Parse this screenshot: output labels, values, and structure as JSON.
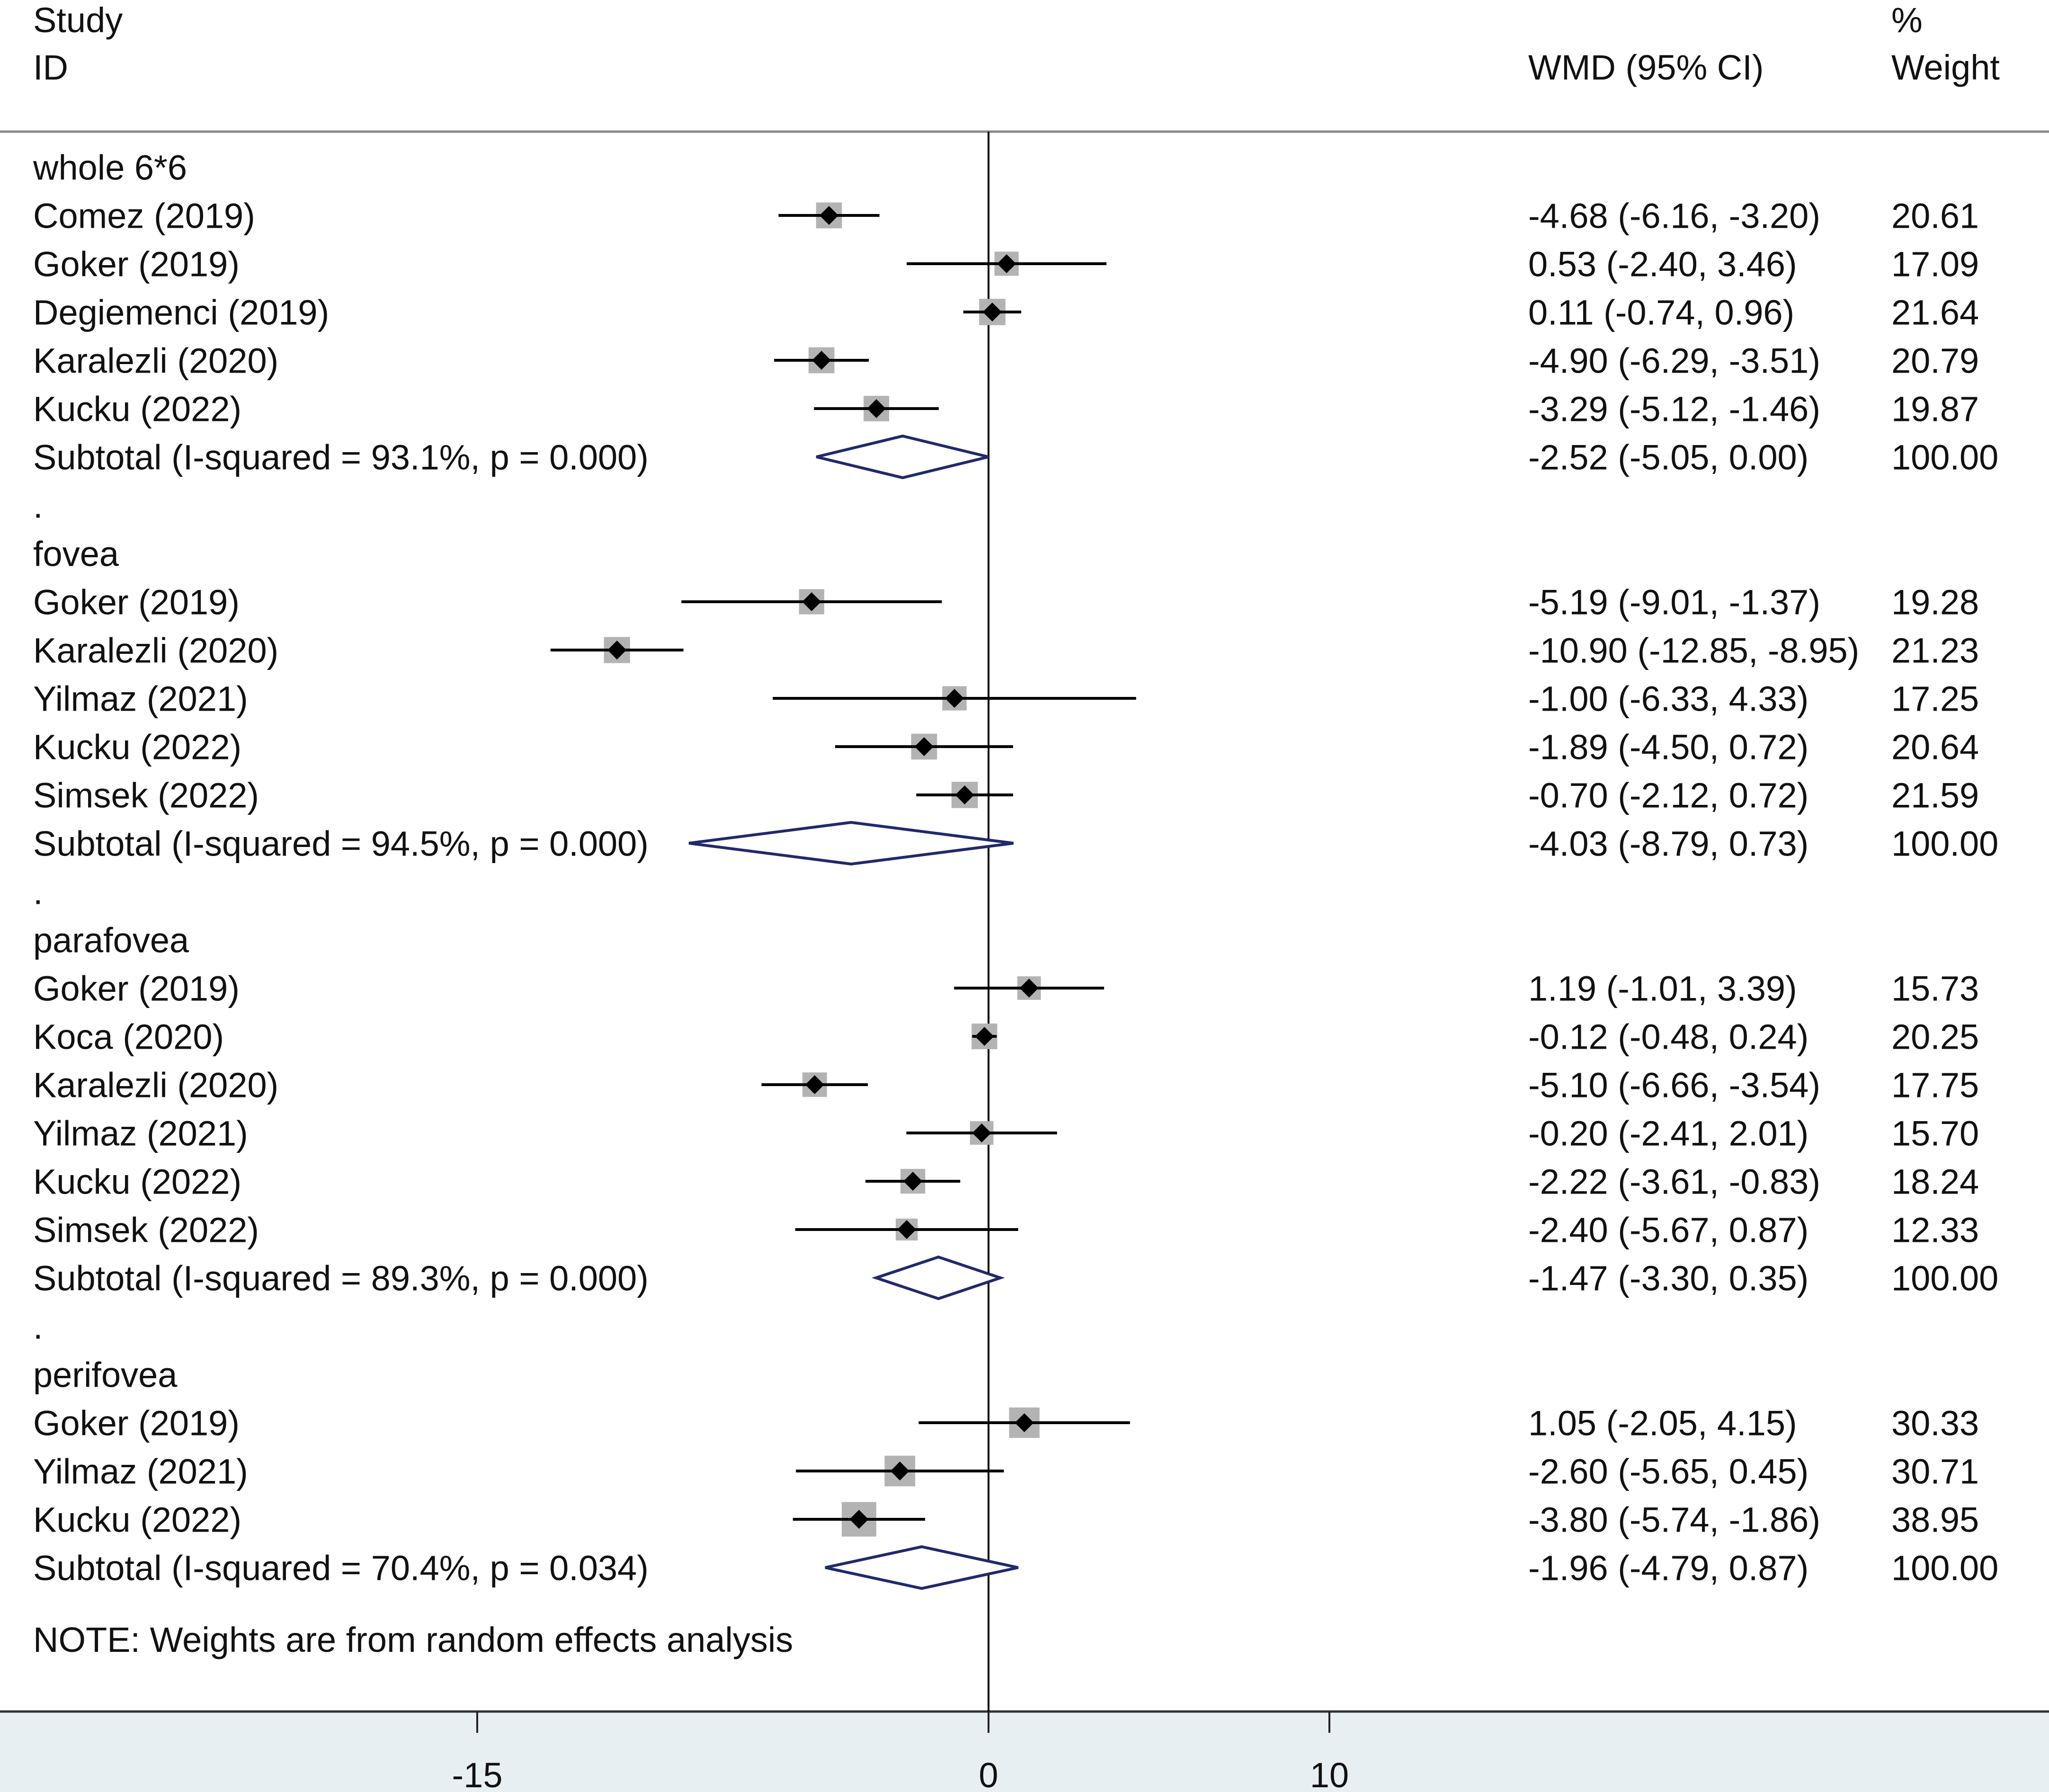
{
  "chart_data": {
    "type": "forest",
    "header": {
      "col_study_line1": "Study",
      "col_study_line2": "ID",
      "col_effect": "WMD (95% CI)",
      "col_weight_line1": "%",
      "col_weight_line2": "Weight"
    },
    "x_ticks": [
      {
        "value": -15,
        "label": "-15"
      },
      {
        "value": 0,
        "label": "0"
      },
      {
        "value": 10,
        "label": "10"
      }
    ],
    "rows": [
      {
        "kind": "group",
        "label": "whole 6*6"
      },
      {
        "kind": "study",
        "label": "Comez (2019)",
        "est": -4.68,
        "lo": -6.16,
        "hi": -3.2,
        "effect_text": "-4.68 (-6.16, -3.20)",
        "weight": "20.61"
      },
      {
        "kind": "study",
        "label": "Goker (2019)",
        "est": 0.53,
        "lo": -2.4,
        "hi": 3.46,
        "effect_text": "0.53 (-2.40, 3.46)",
        "weight": "17.09"
      },
      {
        "kind": "study",
        "label": "Degiemenci (2019)",
        "est": 0.11,
        "lo": -0.74,
        "hi": 0.96,
        "effect_text": "0.11 (-0.74, 0.96)",
        "weight": "21.64"
      },
      {
        "kind": "study",
        "label": "Karalezli (2020)",
        "est": -4.9,
        "lo": -6.29,
        "hi": -3.51,
        "effect_text": "-4.90 (-6.29, -3.51)",
        "weight": "20.79"
      },
      {
        "kind": "study",
        "label": "Kucku (2022)",
        "est": -3.29,
        "lo": -5.12,
        "hi": -1.46,
        "effect_text": "-3.29 (-5.12, -1.46)",
        "weight": "19.87"
      },
      {
        "kind": "subtotal",
        "label": "Subtotal  (I-squared = 93.1%, p = 0.000)",
        "est": -2.52,
        "lo": -5.05,
        "hi": 0.0,
        "effect_text": "-2.52 (-5.05, 0.00)",
        "weight": "100.00"
      },
      {
        "kind": "sep",
        "label": "."
      },
      {
        "kind": "group",
        "label": "fovea"
      },
      {
        "kind": "study",
        "label": "Goker (2019)",
        "est": -5.19,
        "lo": -9.01,
        "hi": -1.37,
        "effect_text": "-5.19 (-9.01, -1.37)",
        "weight": "19.28"
      },
      {
        "kind": "study",
        "label": "Karalezli (2020)",
        "est": -10.9,
        "lo": -12.85,
        "hi": -8.95,
        "effect_text": "-10.90 (-12.85, -8.95)",
        "weight": "21.23"
      },
      {
        "kind": "study",
        "label": "Yilmaz (2021)",
        "est": -1.0,
        "lo": -6.33,
        "hi": 4.33,
        "effect_text": "-1.00 (-6.33, 4.33)",
        "weight": "17.25"
      },
      {
        "kind": "study",
        "label": "Kucku (2022)",
        "est": -1.89,
        "lo": -4.5,
        "hi": 0.72,
        "effect_text": "-1.89 (-4.50, 0.72)",
        "weight": "20.64"
      },
      {
        "kind": "study",
        "label": "Simsek (2022)",
        "est": -0.7,
        "lo": -2.12,
        "hi": 0.72,
        "effect_text": "-0.70 (-2.12, 0.72)",
        "weight": "21.59"
      },
      {
        "kind": "subtotal",
        "label": "Subtotal  (I-squared = 94.5%, p = 0.000)",
        "est": -4.03,
        "lo": -8.79,
        "hi": 0.73,
        "effect_text": "-4.03 (-8.79, 0.73)",
        "weight": "100.00"
      },
      {
        "kind": "sep",
        "label": "."
      },
      {
        "kind": "group",
        "label": "parafovea"
      },
      {
        "kind": "study",
        "label": "Goker (2019)",
        "est": 1.19,
        "lo": -1.01,
        "hi": 3.39,
        "effect_text": "1.19 (-1.01, 3.39)",
        "weight": "15.73"
      },
      {
        "kind": "study",
        "label": "Koca (2020)",
        "est": -0.12,
        "lo": -0.48,
        "hi": 0.24,
        "effect_text": "-0.12 (-0.48, 0.24)",
        "weight": "20.25"
      },
      {
        "kind": "study",
        "label": "Karalezli (2020)",
        "est": -5.1,
        "lo": -6.66,
        "hi": -3.54,
        "effect_text": "-5.10 (-6.66, -3.54)",
        "weight": "17.75"
      },
      {
        "kind": "study",
        "label": "Yilmaz (2021)",
        "est": -0.2,
        "lo": -2.41,
        "hi": 2.01,
        "effect_text": "-0.20 (-2.41, 2.01)",
        "weight": "15.70"
      },
      {
        "kind": "study",
        "label": "Kucku (2022)",
        "est": -2.22,
        "lo": -3.61,
        "hi": -0.83,
        "effect_text": "-2.22 (-3.61, -0.83)",
        "weight": "18.24"
      },
      {
        "kind": "study",
        "label": "Simsek (2022)",
        "est": -2.4,
        "lo": -5.67,
        "hi": 0.87,
        "effect_text": "-2.40 (-5.67, 0.87)",
        "weight": "12.33"
      },
      {
        "kind": "subtotal",
        "label": "Subtotal  (I-squared = 89.3%, p = 0.000)",
        "est": -1.47,
        "lo": -3.3,
        "hi": 0.35,
        "effect_text": "-1.47 (-3.30, 0.35)",
        "weight": "100.00"
      },
      {
        "kind": "sep",
        "label": "."
      },
      {
        "kind": "group",
        "label": "perifovea"
      },
      {
        "kind": "study",
        "label": "Goker (2019)",
        "est": 1.05,
        "lo": -2.05,
        "hi": 4.15,
        "effect_text": "1.05 (-2.05, 4.15)",
        "weight": "30.33"
      },
      {
        "kind": "study",
        "label": "Yilmaz (2021)",
        "est": -2.6,
        "lo": -5.65,
        "hi": 0.45,
        "effect_text": "-2.60 (-5.65, 0.45)",
        "weight": "30.71"
      },
      {
        "kind": "study",
        "label": "Kucku (2022)",
        "est": -3.8,
        "lo": -5.74,
        "hi": -1.86,
        "effect_text": "-3.80 (-5.74, -1.86)",
        "weight": "38.95"
      },
      {
        "kind": "subtotal",
        "label": "Subtotal  (I-squared = 70.4%, p = 0.034)",
        "est": -1.96,
        "lo": -4.79,
        "hi": 0.87,
        "effect_text": "-1.96 (-4.79, 0.87)",
        "weight": "100.00"
      }
    ],
    "note": "NOTE: Weights are from random effects analysis",
    "colors": {
      "text": "#111111",
      "ci_line": "#000000",
      "weight_box": "#b3b3b3",
      "diamond": "#1f2a6b",
      "axis_band": "#e8eff2",
      "rule": "#888888"
    }
  }
}
